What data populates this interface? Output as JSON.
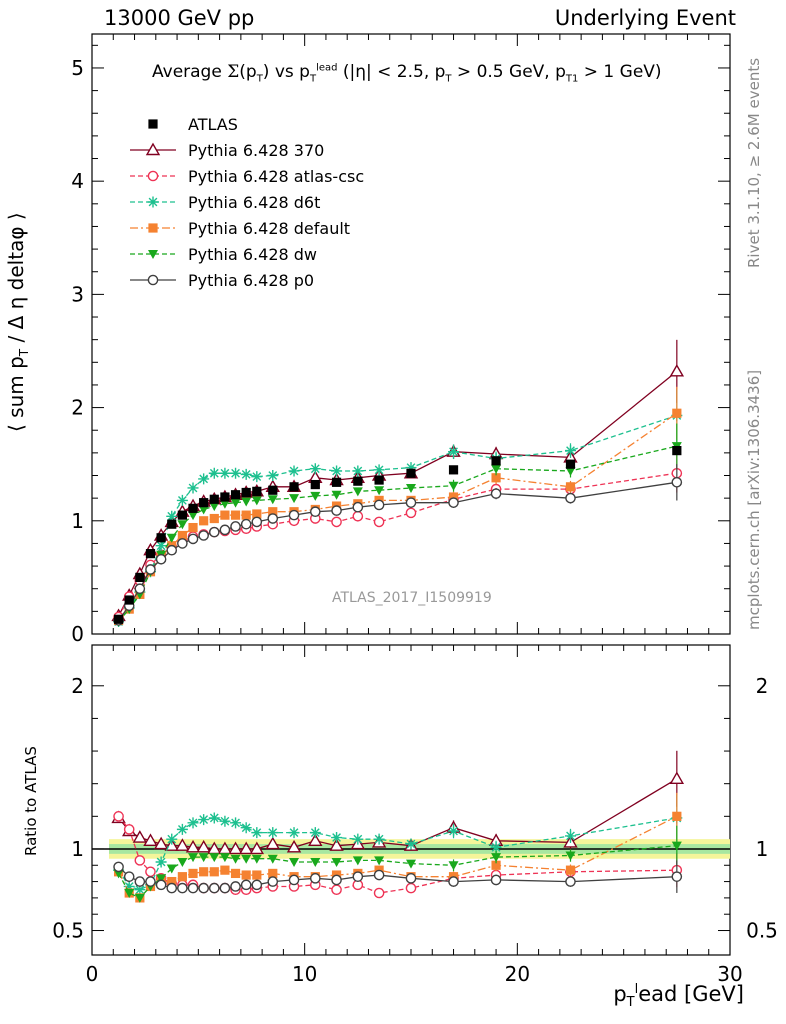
{
  "header": {
    "left": "13000 GeV pp",
    "right": "Underlying Event"
  },
  "side_text": {
    "rivet": "Rivet 3.1.10, ≥ 2.6M events",
    "mcplots": "mcplots.cern.ch [arXiv:1306.3436]"
  },
  "chart_data": [
    {
      "type": "scatter",
      "title": "Average Σ(p_T) vs p_T^lead (|η| < 2.5, p_T > 0.5 GeV, p_T1 > 1 GeV)",
      "xlabel": "p_T^l ead [GeV]",
      "ylabel": "⟨ sum p_T / Δ η deltaφ ⟩",
      "xlim": [
        0,
        30
      ],
      "ylim": [
        0,
        5.3
      ],
      "x_ticks": [
        "0",
        "10",
        "20",
        "30"
      ],
      "y_ticks": [
        "0",
        "1",
        "2",
        "3",
        "4",
        "5"
      ],
      "annotation": "ATLAS_2017_I1509919",
      "legend_position": "top-left",
      "x": [
        1.25,
        1.75,
        2.25,
        2.75,
        3.25,
        3.75,
        4.25,
        4.75,
        5.25,
        5.75,
        6.25,
        6.75,
        7.25,
        7.75,
        8.5,
        9.5,
        10.5,
        11.5,
        12.5,
        13.5,
        15.0,
        17.0,
        19.0,
        22.5,
        27.5
      ],
      "series": [
        {
          "name": "ATLAS",
          "color": "#000000",
          "marker": "square",
          "values": [
            0.13,
            0.3,
            0.5,
            0.71,
            0.85,
            0.97,
            1.05,
            1.11,
            1.16,
            1.19,
            1.21,
            1.23,
            1.25,
            1.26,
            1.27,
            1.3,
            1.32,
            1.34,
            1.35,
            1.36,
            1.42,
            1.45,
            1.53,
            1.5,
            1.62
          ]
        },
        {
          "name": "Pythia 6.428 370",
          "color": "#800020",
          "marker": "triangle-open",
          "values": [
            0.16,
            0.34,
            0.53,
            0.74,
            0.87,
            0.99,
            1.08,
            1.13,
            1.17,
            1.19,
            1.21,
            1.23,
            1.25,
            1.26,
            1.3,
            1.3,
            1.38,
            1.36,
            1.38,
            1.4,
            1.42,
            1.61,
            1.59,
            1.56,
            2.32
          ]
        },
        {
          "name": "Pythia 6.428 atlas-csc",
          "color": "#ee3355",
          "marker": "circle-open",
          "values": [
            0.15,
            0.33,
            0.47,
            0.61,
            0.7,
            0.77,
            0.82,
            0.86,
            0.88,
            0.9,
            0.91,
            0.92,
            0.93,
            0.95,
            0.97,
            1.0,
            1.02,
            0.99,
            1.04,
            0.99,
            1.07,
            1.19,
            1.28,
            1.28,
            1.42
          ]
        },
        {
          "name": "Pythia 6.428 d6t",
          "color": "#1dc08f",
          "marker": "star",
          "values": [
            0.11,
            0.23,
            0.37,
            0.55,
            0.78,
            1.04,
            1.18,
            1.29,
            1.37,
            1.42,
            1.42,
            1.42,
            1.41,
            1.39,
            1.4,
            1.44,
            1.46,
            1.44,
            1.44,
            1.45,
            1.47,
            1.61,
            1.55,
            1.62,
            1.93
          ]
        },
        {
          "name": "Pythia 6.428 default",
          "color": "#f58231",
          "marker": "square",
          "values": [
            0.12,
            0.22,
            0.35,
            0.55,
            0.68,
            0.78,
            0.87,
            0.94,
            1.0,
            1.02,
            1.05,
            1.05,
            1.05,
            1.06,
            1.08,
            1.08,
            1.1,
            1.13,
            1.15,
            1.18,
            1.18,
            1.21,
            1.38,
            1.3,
            1.95
          ]
        },
        {
          "name": "Pythia 6.428 dw",
          "color": "#19a81c",
          "marker": "triangle-down",
          "values": [
            0.11,
            0.22,
            0.35,
            0.55,
            0.7,
            0.85,
            0.97,
            1.05,
            1.1,
            1.13,
            1.15,
            1.16,
            1.17,
            1.18,
            1.19,
            1.2,
            1.22,
            1.23,
            1.26,
            1.27,
            1.29,
            1.31,
            1.46,
            1.44,
            1.66
          ]
        },
        {
          "name": "Pythia 6.428 p0",
          "color": "#404040",
          "marker": "circle-open",
          "values": [
            0.12,
            0.25,
            0.4,
            0.57,
            0.66,
            0.74,
            0.8,
            0.84,
            0.87,
            0.9,
            0.92,
            0.95,
            0.97,
            0.99,
            1.02,
            1.05,
            1.08,
            1.09,
            1.12,
            1.14,
            1.16,
            1.16,
            1.24,
            1.2,
            1.34
          ]
        }
      ]
    },
    {
      "type": "scatter",
      "title": "",
      "xlabel": "p_T^l ead [GeV]",
      "ylabel": "Ratio to ATLAS",
      "xlim": [
        0,
        30
      ],
      "ylim": [
        0.35,
        2.25
      ],
      "y_ticks": [
        "0.5",
        "1",
        "2"
      ],
      "reference_band": {
        "inner": [
          0.97,
          1.03
        ],
        "outer": [
          0.94,
          1.06
        ]
      },
      "x": [
        1.25,
        1.75,
        2.25,
        2.75,
        3.25,
        3.75,
        4.25,
        4.75,
        5.25,
        5.75,
        6.25,
        6.75,
        7.25,
        7.75,
        8.5,
        9.5,
        10.5,
        11.5,
        12.5,
        13.5,
        15.0,
        17.0,
        19.0,
        22.5,
        27.5
      ],
      "series": [
        {
          "name": "Pythia 6.428 370",
          "color": "#800020",
          "marker": "triangle-open",
          "values": [
            1.19,
            1.11,
            1.07,
            1.05,
            1.03,
            1.02,
            1.02,
            1.01,
            1.01,
            1.0,
            1.0,
            1.0,
            1.0,
            1.0,
            1.03,
            1.01,
            1.05,
            1.02,
            1.03,
            1.04,
            1.02,
            1.13,
            1.05,
            1.04,
            1.43
          ]
        },
        {
          "name": "Pythia 6.428 atlas-csc",
          "color": "#ee3355",
          "marker": "circle-open",
          "values": [
            1.2,
            1.12,
            0.93,
            0.86,
            0.82,
            0.79,
            0.78,
            0.78,
            0.76,
            0.76,
            0.76,
            0.75,
            0.75,
            0.76,
            0.77,
            0.77,
            0.78,
            0.75,
            0.78,
            0.73,
            0.76,
            0.82,
            0.84,
            0.86,
            0.87
          ]
        },
        {
          "name": "Pythia 6.428 d6t",
          "color": "#1dc08f",
          "marker": "star",
          "values": [
            0.87,
            0.77,
            0.75,
            0.78,
            0.92,
            1.06,
            1.12,
            1.16,
            1.18,
            1.19,
            1.17,
            1.16,
            1.13,
            1.1,
            1.1,
            1.1,
            1.1,
            1.07,
            1.06,
            1.06,
            1.03,
            1.11,
            1.01,
            1.08,
            1.19
          ]
        },
        {
          "name": "Pythia 6.428 default",
          "color": "#f58231",
          "marker": "square",
          "values": [
            0.86,
            0.73,
            0.7,
            0.77,
            0.8,
            0.8,
            0.83,
            0.85,
            0.86,
            0.86,
            0.87,
            0.85,
            0.84,
            0.84,
            0.85,
            0.83,
            0.83,
            0.84,
            0.85,
            0.87,
            0.83,
            0.83,
            0.9,
            0.87,
            1.2
          ]
        },
        {
          "name": "Pythia 6.428 dw",
          "color": "#19a81c",
          "marker": "triangle-down",
          "values": [
            0.85,
            0.73,
            0.7,
            0.77,
            0.82,
            0.88,
            0.92,
            0.95,
            0.95,
            0.95,
            0.95,
            0.94,
            0.94,
            0.94,
            0.94,
            0.92,
            0.92,
            0.92,
            0.93,
            0.93,
            0.91,
            0.9,
            0.95,
            0.96,
            1.02
          ]
        },
        {
          "name": "Pythia 6.428 p0",
          "color": "#404040",
          "marker": "circle-open",
          "values": [
            0.89,
            0.83,
            0.8,
            0.8,
            0.78,
            0.76,
            0.76,
            0.76,
            0.76,
            0.76,
            0.76,
            0.77,
            0.78,
            0.78,
            0.8,
            0.81,
            0.82,
            0.81,
            0.83,
            0.84,
            0.82,
            0.8,
            0.81,
            0.8,
            0.83
          ]
        }
      ]
    }
  ]
}
